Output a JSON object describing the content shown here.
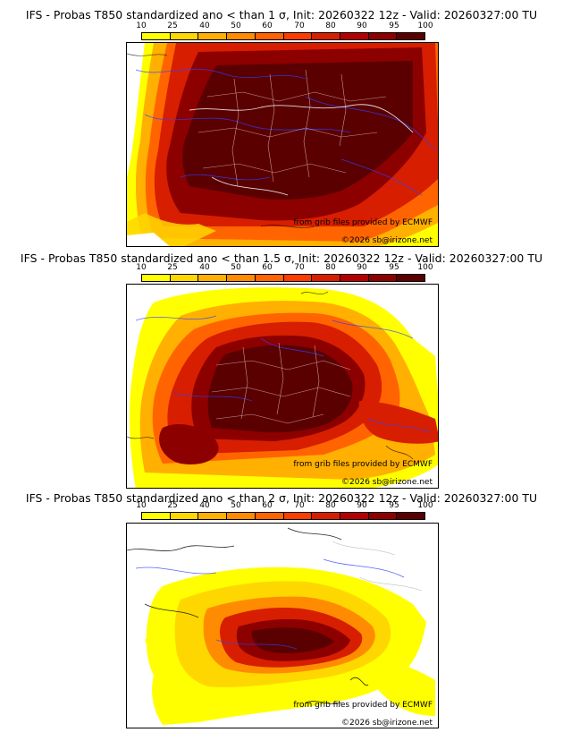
{
  "legend": {
    "ticks": [
      "10",
      "25",
      "40",
      "50",
      "60",
      "70",
      "80",
      "90",
      "95",
      "100"
    ],
    "colors": [
      "#ffff00",
      "#ffd700",
      "#ffb000",
      "#ff8c00",
      "#ff6400",
      "#ff3c00",
      "#d71e00",
      "#b40000",
      "#8c0000",
      "#5a0000"
    ]
  },
  "panels": [
    {
      "title": "IFS - Probas T850  standardized ano < than 1 σ, Init: 20260322 12z - Valid: 20260327:00 TU",
      "credit_source": "from grib files provided by ECMWF",
      "credit_copyright": "©2026 sb@irizone.net"
    },
    {
      "title": "IFS - Probas T850  standardized ano < than 1.5 σ, Init: 20260322 12z - Valid: 20260327:00 TU",
      "credit_source": "from grib files provided by ECMWF",
      "credit_copyright": "©2026 sb@irizone.net"
    },
    {
      "title": "IFS - Probas T850  standardized ano < than 2 σ, Init: 20260322 12z - Valid: 20260327:00 TU",
      "credit_source": "from grib files provided by ECMWF",
      "credit_copyright": "©2026 sb@irizone.net"
    }
  ]
}
